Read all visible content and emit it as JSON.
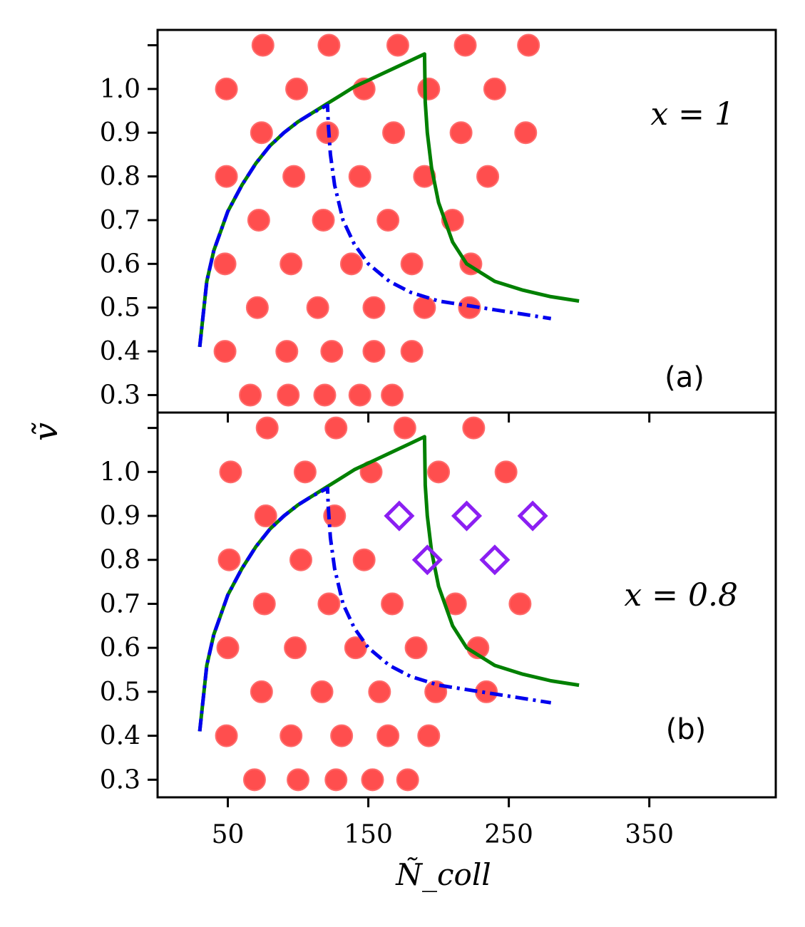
{
  "chart_data": [
    {
      "type": "scatter",
      "panel_label": "(a)",
      "annotation": "x = 1",
      "xlabel": "Ñ_coll",
      "ylabel": "ṽ",
      "xlim": [
        0,
        440
      ],
      "ylim": [
        0.26,
        1.135
      ],
      "xticks": [
        50,
        150,
        250,
        350
      ],
      "xtick_labels": [
        "50",
        "150",
        "250",
        "350"
      ],
      "yticks": [
        0.3,
        0.4,
        0.5,
        0.6,
        0.7,
        0.8,
        0.9,
        1.0,
        1.1
      ],
      "ytick_labels": [
        "0.3",
        "0.4",
        "0.5",
        "0.6",
        "0.7",
        "0.8",
        "0.9",
        "1.0",
        ""
      ],
      "series": [
        {
          "name": "simulation points",
          "marker": "circle",
          "color": "#ff4545",
          "points": [
            [
              75,
              1.1
            ],
            [
              122,
              1.1
            ],
            [
              171,
              1.1
            ],
            [
              219,
              1.1
            ],
            [
              264,
              1.1
            ],
            [
              49,
              1.0
            ],
            [
              99,
              1.0
            ],
            [
              147,
              1.0
            ],
            [
              193,
              1.0
            ],
            [
              240,
              1.0
            ],
            [
              74,
              0.9
            ],
            [
              121,
              0.9
            ],
            [
              168,
              0.9
            ],
            [
              216,
              0.9
            ],
            [
              262,
              0.9
            ],
            [
              49,
              0.8
            ],
            [
              97,
              0.8
            ],
            [
              144,
              0.8
            ],
            [
              190,
              0.8
            ],
            [
              235,
              0.8
            ],
            [
              72,
              0.7
            ],
            [
              118,
              0.7
            ],
            [
              164,
              0.7
            ],
            [
              210,
              0.7
            ],
            [
              48,
              0.6
            ],
            [
              95,
              0.6
            ],
            [
              138,
              0.6
            ],
            [
              181,
              0.6
            ],
            [
              223,
              0.6
            ],
            [
              71,
              0.5
            ],
            [
              114,
              0.5
            ],
            [
              154,
              0.5
            ],
            [
              190,
              0.5
            ],
            [
              222,
              0.5
            ],
            [
              48,
              0.4
            ],
            [
              92,
              0.4
            ],
            [
              124,
              0.4
            ],
            [
              154,
              0.4
            ],
            [
              181,
              0.4
            ],
            [
              66,
              0.3
            ],
            [
              93,
              0.3
            ],
            [
              119,
              0.3
            ],
            [
              144,
              0.3
            ],
            [
              167,
              0.3
            ]
          ]
        },
        {
          "name": "green boundary",
          "style": "solid",
          "color": "#008000",
          "points": [
            [
              30,
              0.41
            ],
            [
              35,
              0.56
            ],
            [
              40,
              0.63
            ],
            [
              50,
              0.72
            ],
            [
              60,
              0.78
            ],
            [
              70,
              0.83
            ],
            [
              80,
              0.87
            ],
            [
              90,
              0.9
            ],
            [
              100,
              0.925
            ],
            [
              110,
              0.945
            ],
            [
              120,
              0.965
            ],
            [
              130,
              0.985
            ],
            [
              140,
              1.005
            ],
            [
              150,
              1.02
            ],
            [
              160,
              1.035
            ],
            [
              170,
              1.05
            ],
            [
              180,
              1.065
            ],
            [
              190,
              1.08
            ],
            [
              190.5,
              0.97
            ],
            [
              192,
              0.9
            ],
            [
              195,
              0.82
            ],
            [
              200,
              0.74
            ],
            [
              210,
              0.65
            ],
            [
              220,
              0.6
            ],
            [
              240,
              0.56
            ],
            [
              260,
              0.54
            ],
            [
              280,
              0.525
            ],
            [
              300,
              0.515
            ]
          ]
        },
        {
          "name": "blue boundary",
          "style": "dashdot",
          "color": "#0000ee",
          "points": [
            [
              30,
              0.41
            ],
            [
              35,
              0.56
            ],
            [
              40,
              0.63
            ],
            [
              50,
              0.72
            ],
            [
              60,
              0.78
            ],
            [
              70,
              0.83
            ],
            [
              80,
              0.87
            ],
            [
              90,
              0.9
            ],
            [
              100,
              0.925
            ],
            [
              110,
              0.945
            ],
            [
              121,
              0.963
            ],
            [
              121.5,
              0.92
            ],
            [
              123,
              0.85
            ],
            [
              126,
              0.78
            ],
            [
              132,
              0.7
            ],
            [
              140,
              0.645
            ],
            [
              150,
              0.6
            ],
            [
              165,
              0.56
            ],
            [
              180,
              0.535
            ],
            [
              200,
              0.515
            ],
            [
              220,
              0.505
            ],
            [
              240,
              0.495
            ],
            [
              260,
              0.485
            ],
            [
              280,
              0.475
            ]
          ]
        }
      ]
    },
    {
      "type": "scatter",
      "panel_label": "(b)",
      "annotation": "x = 0.8",
      "xlabel": "Ñ_coll",
      "ylabel": "ṽ",
      "xlim": [
        0,
        440
      ],
      "ylim": [
        0.26,
        1.135
      ],
      "xticks": [
        50,
        150,
        250,
        350
      ],
      "xtick_labels": [
        "50",
        "150",
        "250",
        "350"
      ],
      "yticks": [
        0.3,
        0.4,
        0.5,
        0.6,
        0.7,
        0.8,
        0.9,
        1.0,
        1.1
      ],
      "ytick_labels": [
        "0.3",
        "0.4",
        "0.5",
        "0.6",
        "0.7",
        "0.8",
        "0.9",
        "1.0",
        ""
      ],
      "series": [
        {
          "name": "simulation points",
          "marker": "circle",
          "color": "#ff4545",
          "points": [
            [
              78,
              1.1
            ],
            [
              127,
              1.1
            ],
            [
              176,
              1.1
            ],
            [
              225,
              1.1
            ],
            [
              52,
              1.0
            ],
            [
              105,
              1.0
            ],
            [
              152,
              1.0
            ],
            [
              200,
              1.0
            ],
            [
              248,
              1.0
            ],
            [
              77,
              0.9
            ],
            [
              126,
              0.9
            ],
            [
              51,
              0.8
            ],
            [
              102,
              0.8
            ],
            [
              147,
              0.8
            ],
            [
              76,
              0.7
            ],
            [
              122,
              0.7
            ],
            [
              167,
              0.7
            ],
            [
              212,
              0.7
            ],
            [
              258,
              0.7
            ],
            [
              50,
              0.6
            ],
            [
              98,
              0.6
            ],
            [
              141,
              0.6
            ],
            [
              184,
              0.6
            ],
            [
              228,
              0.6
            ],
            [
              74,
              0.5
            ],
            [
              117,
              0.5
            ],
            [
              158,
              0.5
            ],
            [
              198,
              0.5
            ],
            [
              234,
              0.5
            ],
            [
              49,
              0.4
            ],
            [
              95,
              0.4
            ],
            [
              131,
              0.4
            ],
            [
              164,
              0.4
            ],
            [
              193,
              0.4
            ],
            [
              69,
              0.3
            ],
            [
              100,
              0.3
            ],
            [
              127,
              0.3
            ],
            [
              153,
              0.3
            ],
            [
              178,
              0.3
            ]
          ]
        },
        {
          "name": "diamond points",
          "marker": "diamond",
          "color": "#8b1ff2",
          "points": [
            [
              172,
              0.9
            ],
            [
              220,
              0.9
            ],
            [
              267,
              0.9
            ],
            [
              192,
              0.8
            ],
            [
              240,
              0.8
            ]
          ]
        },
        {
          "name": "green boundary",
          "style": "solid",
          "color": "#008000",
          "points": [
            [
              30,
              0.41
            ],
            [
              35,
              0.56
            ],
            [
              40,
              0.63
            ],
            [
              50,
              0.72
            ],
            [
              60,
              0.78
            ],
            [
              70,
              0.83
            ],
            [
              80,
              0.87
            ],
            [
              90,
              0.9
            ],
            [
              100,
              0.925
            ],
            [
              110,
              0.945
            ],
            [
              120,
              0.965
            ],
            [
              130,
              0.985
            ],
            [
              140,
              1.005
            ],
            [
              150,
              1.02
            ],
            [
              160,
              1.035
            ],
            [
              170,
              1.05
            ],
            [
              180,
              1.065
            ],
            [
              190,
              1.08
            ],
            [
              190.5,
              0.97
            ],
            [
              192,
              0.9
            ],
            [
              195,
              0.82
            ],
            [
              200,
              0.74
            ],
            [
              210,
              0.65
            ],
            [
              220,
              0.6
            ],
            [
              240,
              0.56
            ],
            [
              260,
              0.54
            ],
            [
              280,
              0.525
            ],
            [
              300,
              0.515
            ]
          ]
        },
        {
          "name": "blue boundary",
          "style": "dashdot",
          "color": "#0000ee",
          "points": [
            [
              30,
              0.41
            ],
            [
              35,
              0.56
            ],
            [
              40,
              0.63
            ],
            [
              50,
              0.72
            ],
            [
              60,
              0.78
            ],
            [
              70,
              0.83
            ],
            [
              80,
              0.87
            ],
            [
              90,
              0.9
            ],
            [
              100,
              0.925
            ],
            [
              110,
              0.945
            ],
            [
              121,
              0.963
            ],
            [
              121.5,
              0.92
            ],
            [
              123,
              0.85
            ],
            [
              126,
              0.78
            ],
            [
              132,
              0.7
            ],
            [
              140,
              0.645
            ],
            [
              150,
              0.6
            ],
            [
              165,
              0.56
            ],
            [
              180,
              0.535
            ],
            [
              200,
              0.515
            ],
            [
              220,
              0.505
            ],
            [
              240,
              0.495
            ],
            [
              260,
              0.485
            ],
            [
              280,
              0.475
            ]
          ]
        }
      ]
    }
  ]
}
